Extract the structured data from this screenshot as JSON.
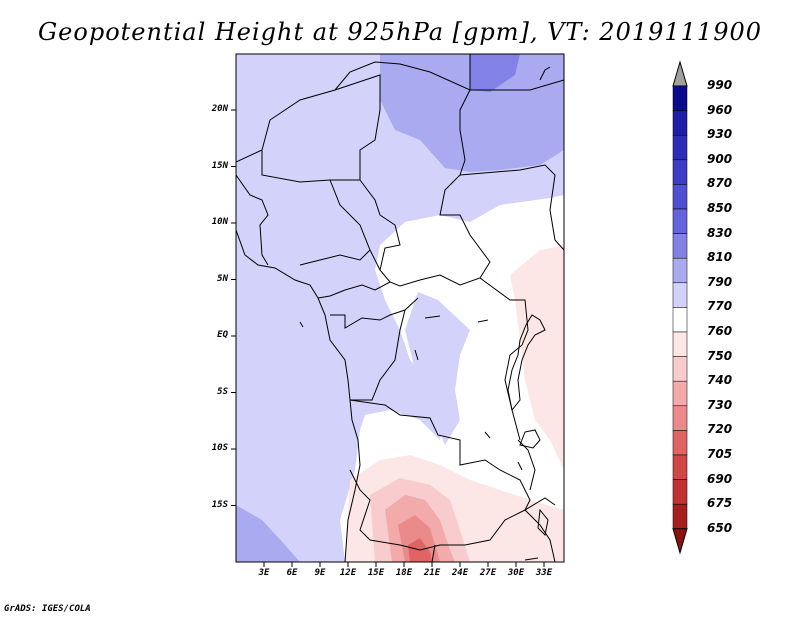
{
  "title": "Geopotential Height at 925hPa [gpm], VT: 2019111900",
  "credit": "GrADS: IGES/COLA",
  "y_labels": [
    "20N",
    "15N",
    "10N",
    "5N",
    "EQ",
    "5S",
    "10S",
    "15S"
  ],
  "x_labels": [
    "3E",
    "6E",
    "9E",
    "12E",
    "15E",
    "18E",
    "21E",
    "24E",
    "27E",
    "30E",
    "33E"
  ],
  "colorbar": {
    "levels": [
      "990",
      "960",
      "930",
      "900",
      "870",
      "850",
      "830",
      "810",
      "790",
      "770",
      "760",
      "750",
      "740",
      "730",
      "720",
      "705",
      "690",
      "675",
      "650"
    ],
    "colors": [
      "#0a0a8c",
      "#1e1ea8",
      "#2d2db8",
      "#3c3cc6",
      "#5050d2",
      "#6464dc",
      "#8282e6",
      "#aaaaf0",
      "#d2d2fa",
      "#ffffff",
      "#fce6e6",
      "#f8cccc",
      "#f2aaaa",
      "#ea8a8a",
      "#e06464",
      "#d24646",
      "#c03232",
      "#a61e1e"
    ],
    "over_color": "#a0a0a0",
    "under_color": "#8c1010"
  },
  "map": {
    "domain": {
      "lon": [
        0,
        35
      ],
      "lat": [
        -20,
        25
      ]
    },
    "background_color": "#d2d2fa",
    "field_colors": {
      "higher": "#aaaaf0",
      "high": "#8282e6",
      "mid": "#ffffff",
      "low1": "#fce6e6",
      "low2": "#f8cccc",
      "low3": "#f2aaaa",
      "low4": "#ea8a8a",
      "low5": "#e06464"
    }
  }
}
